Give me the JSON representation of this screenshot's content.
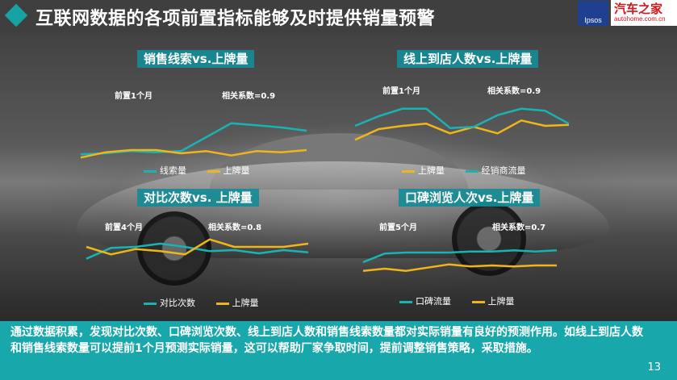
{
  "header": {
    "title": "互联网数据的各项前置指标能够及时提供销量预警"
  },
  "logos": {
    "ipsos": "Ipsos",
    "autohome_cn": "汽车之家",
    "autohome_en": "autohome.com.cn"
  },
  "colors": {
    "teal": "#1ab3b3",
    "gold": "#f0b51a",
    "footer": "#18a8ab"
  },
  "chart_data": [
    {
      "type": "line",
      "title": "销售线索vs.上牌量",
      "annotations": [
        "前置1个月",
        "相关系数=0.9"
      ],
      "x": [
        1,
        2,
        3,
        4,
        5,
        6,
        7,
        8,
        9,
        10
      ],
      "series": [
        {
          "name": "线索量",
          "color": "#1ab3b3",
          "values": [
            14,
            15,
            17,
            16,
            17,
            30,
            43,
            41,
            39,
            36
          ]
        },
        {
          "name": "上牌量",
          "color": "#f0b51a",
          "values": [
            11,
            16,
            18,
            18,
            15,
            17,
            13,
            17,
            16,
            18
          ]
        }
      ],
      "ylim": [
        0,
        60
      ]
    },
    {
      "type": "line",
      "title": "线上到店人数vs.上牌量",
      "annotations": [
        "前置1个月",
        "相关系数=0.9"
      ],
      "x": [
        1,
        2,
        3,
        4,
        5,
        6,
        7,
        8,
        9,
        10
      ],
      "series": [
        {
          "name": "上牌量",
          "color": "#f0b51a",
          "values": [
            20,
            30,
            33,
            35,
            26,
            32,
            26,
            38,
            33,
            34
          ]
        },
        {
          "name": "经销商流量",
          "color": "#1ab3b3",
          "values": [
            33,
            42,
            49,
            49,
            31,
            32,
            43,
            49,
            47,
            35
          ]
        }
      ],
      "ylim": [
        0,
        60
      ]
    },
    {
      "type": "line",
      "title": "对比次数vs. 上牌量",
      "annotations": [
        "前置4个月",
        "相关系数=0.8"
      ],
      "x": [
        1,
        2,
        3,
        4,
        5,
        6,
        7,
        8,
        9,
        10
      ],
      "series": [
        {
          "name": "对比次数",
          "color": "#1ab3b3",
          "values": [
            22,
            32,
            33,
            36,
            33,
            29,
            30,
            27,
            30,
            28
          ]
        },
        {
          "name": "上牌量",
          "color": "#f0b51a",
          "values": [
            33,
            26,
            31,
            29,
            26,
            40,
            33,
            33,
            33,
            36
          ]
        }
      ],
      "ylim": [
        0,
        60
      ]
    },
    {
      "type": "line",
      "title": "口碑浏览人次vs.上牌量",
      "annotations": [
        "前置5个月",
        "相关系数=0.7"
      ],
      "x": [
        1,
        2,
        3,
        4,
        5,
        6,
        7,
        8,
        9,
        10
      ],
      "series": [
        {
          "name": "口碑流量",
          "color": "#1ab3b3",
          "values": [
            30,
            38,
            39,
            39,
            39,
            40,
            40,
            41,
            40,
            41
          ]
        },
        {
          "name": "上牌量",
          "color": "#f0b51a",
          "values": [
            22,
            24,
            22,
            25,
            28,
            26,
            27,
            26,
            27,
            27
          ]
        }
      ],
      "ylim": [
        0,
        60
      ]
    }
  ],
  "footer": {
    "text": "通过数据积累，发现对比次数、口碑浏览次数、线上到店人数和销售线索数量都对实际销量有良好的预测作用。如线上到店人数和销售线索数量可以提前1个月预测实际销量，这可以帮助厂家争取时间，提前调整销售策略，采取措施。",
    "page_number": "13"
  }
}
